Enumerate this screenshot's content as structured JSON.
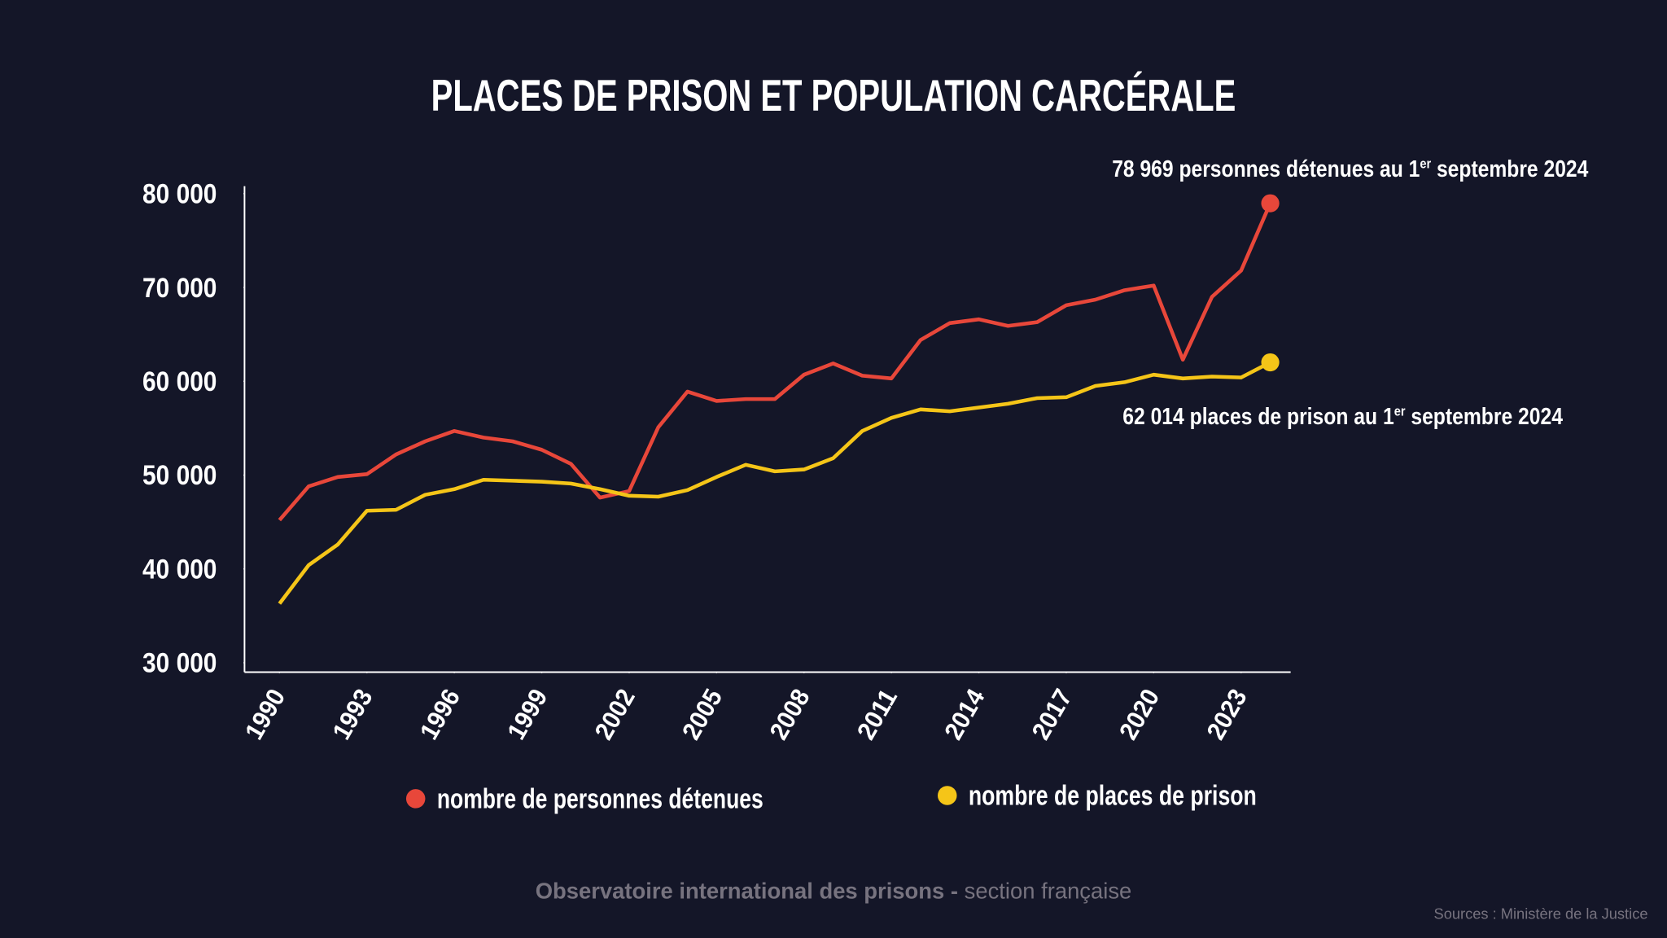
{
  "chart_data": {
    "type": "line",
    "title": "PLACES DE PRISON ET POPULATION CARCÉRALE",
    "x": [
      1990,
      1991,
      1992,
      1993,
      1994,
      1995,
      1996,
      1997,
      1998,
      1999,
      2000,
      2001,
      2002,
      2003,
      2004,
      2005,
      2006,
      2007,
      2008,
      2009,
      2010,
      2011,
      2012,
      2013,
      2014,
      2015,
      2016,
      2017,
      2018,
      2019,
      2020,
      2021,
      2022,
      2023,
      2024
    ],
    "xlim": [
      1988.8,
      2024.7
    ],
    "xticks": [
      1990,
      1993,
      1996,
      1999,
      2002,
      2005,
      2008,
      2011,
      2014,
      2017,
      2020,
      2023
    ],
    "ylim": [
      29000,
      80800
    ],
    "yticks": [
      {
        "value": 30000,
        "label": "30 000"
      },
      {
        "value": 40000,
        "label": "40 000"
      },
      {
        "value": 50000,
        "label": "50 000"
      },
      {
        "value": 60000,
        "label": "60 000"
      },
      {
        "value": 70000,
        "label": "70 000"
      },
      {
        "value": 80000,
        "label": "80 000"
      }
    ],
    "grid": false,
    "series": [
      {
        "name": "nombre de personnes détenues",
        "color": "#e8473a",
        "values": [
          45200,
          48800,
          49800,
          50100,
          52200,
          53600,
          54700,
          54000,
          53600,
          52700,
          51200,
          47600,
          48300,
          55100,
          58900,
          57900,
          58100,
          58100,
          60700,
          61900,
          60600,
          60300,
          64400,
          66200,
          66600,
          65900,
          66300,
          68100,
          68700,
          69700,
          70200,
          62300,
          69000,
          71800,
          78969
        ]
      },
      {
        "name": "nombre de places de prison",
        "color": "#f5c518",
        "values": [
          36300,
          40400,
          42600,
          46200,
          46300,
          47900,
          48500,
          49500,
          49400,
          49300,
          49100,
          48500,
          47800,
          47700,
          48400,
          49800,
          51100,
          50400,
          50600,
          51800,
          54700,
          56100,
          57000,
          56800,
          57200,
          57600,
          58200,
          58300,
          59500,
          59900,
          60700,
          60300,
          60500,
          60400,
          62014
        ]
      }
    ],
    "annotations": [
      {
        "text_before": "78 969 personnes détenues au 1",
        "superscript": "er",
        "text_after": " septembre 2024"
      },
      {
        "text_before": "62 014 places de prison au 1",
        "superscript": "er",
        "text_after": " septembre 2024"
      }
    ],
    "footer": {
      "organization": "Observatoire international des prisons -",
      "section": " section française",
      "source": "Sources : Ministère de la Justice"
    }
  }
}
